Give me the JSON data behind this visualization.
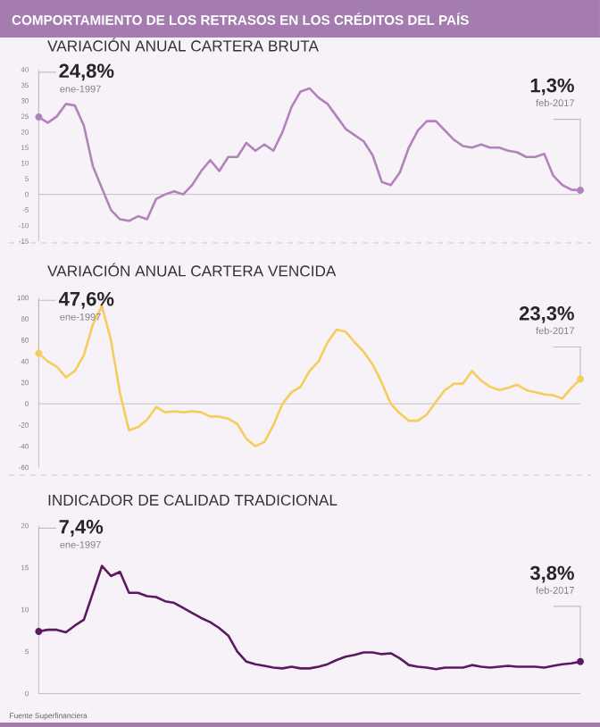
{
  "chart_data": [
    {
      "type": "line",
      "title": "COMPORTAMIENTO DE LOS RETRASOS EN LOS CRÉDITOS DEL PAÍS",
      "subtitle": "VARIACIÓN ANUAL CARTERA BRUTA",
      "color": "#b283bb",
      "tick_labels": "y",
      "categories": [
        null,
        null,
        null,
        null,
        null,
        null,
        null,
        null,
        null,
        null,
        null,
        null,
        null,
        null,
        null,
        null,
        null,
        null,
        null,
        null,
        null,
        null,
        null,
        null,
        null,
        null,
        null,
        null,
        null,
        null,
        null,
        null,
        null,
        null,
        null,
        null,
        null,
        null,
        null,
        null,
        null,
        null,
        null,
        null,
        null,
        null,
        null,
        null,
        null,
        null,
        null,
        null,
        null,
        null,
        null,
        null,
        null,
        null,
        null,
        null,
        null
      ],
      "values": [
        24.8,
        23,
        25,
        29,
        28.5,
        22,
        9,
        2,
        -5,
        -8,
        -8.5,
        -7,
        -8,
        -1.5,
        0,
        1,
        0,
        3,
        7.5,
        11,
        7.5,
        12,
        12,
        16.5,
        14,
        16,
        14,
        20,
        28,
        33,
        34,
        31,
        29,
        25,
        21,
        19,
        17,
        12.5,
        4,
        3,
        7,
        15,
        20.5,
        23.5,
        23.5,
        20.5,
        17.5,
        15.5,
        15,
        16,
        15,
        15,
        14,
        13.5,
        12,
        12,
        13,
        6,
        3,
        1.5,
        1.3
      ],
      "ylim": [
        -15,
        40
      ],
      "yticks": [
        -15,
        -10,
        -5,
        0,
        5,
        10,
        15,
        20,
        25,
        30,
        35,
        40
      ],
      "ref_lines": [
        {
          "axis": "y",
          "value": 0
        }
      ],
      "annotations": [
        "24,8%",
        "ene-1997",
        "1,3%",
        "feb-2017"
      ]
    },
    {
      "type": "line",
      "title": "VARIACIÓN ANUAL CARTERA VENCIDA",
      "color": "#f6cd5c",
      "tick_labels": "y",
      "categories": [
        null,
        null,
        null,
        null,
        null,
        null,
        null,
        null,
        null,
        null,
        null,
        null,
        null,
        null,
        null,
        null,
        null,
        null,
        null,
        null,
        null,
        null,
        null,
        null,
        null,
        null,
        null,
        null,
        null,
        null,
        null,
        null,
        null,
        null,
        null,
        null,
        null,
        null,
        null,
        null,
        null,
        null,
        null,
        null,
        null,
        null,
        null,
        null,
        null,
        null,
        null,
        null,
        null,
        null,
        null,
        null,
        null,
        null,
        null,
        null,
        null
      ],
      "values": [
        47.6,
        40,
        35,
        25,
        31,
        46,
        75,
        92,
        60,
        10,
        -25,
        -22,
        -15,
        -3,
        -8,
        -7,
        -8,
        -7,
        -8,
        -12,
        -12,
        -14,
        -19,
        -33,
        -40,
        -36,
        -20,
        0,
        11,
        16,
        31,
        40,
        58,
        70,
        68,
        58,
        49,
        37,
        20,
        0,
        -9,
        -16,
        -16,
        -10,
        2,
        13,
        19,
        19,
        31,
        22,
        16,
        13,
        15,
        18,
        13,
        11,
        9,
        8,
        5,
        15,
        23.3
      ],
      "ylim": [
        -60,
        100
      ],
      "yticks": [
        -60,
        -40,
        -20,
        0,
        20,
        40,
        60,
        80,
        100
      ],
      "ref_lines": [
        {
          "axis": "y",
          "value": 0
        }
      ],
      "annotations": [
        "47,6%",
        "ene-1997",
        "23,3%",
        "feb-2017"
      ]
    },
    {
      "type": "line",
      "title": "INDICADOR DE CALIDAD TRADICIONAL",
      "color": "#5b1a60",
      "tick_labels": "y",
      "categories": [
        null,
        null,
        null,
        null,
        null,
        null,
        null,
        null,
        null,
        null,
        null,
        null,
        null,
        null,
        null,
        null,
        null,
        null,
        null,
        null,
        null,
        null,
        null,
        null,
        null,
        null,
        null,
        null,
        null,
        null,
        null,
        null,
        null,
        null,
        null,
        null,
        null,
        null,
        null,
        null,
        null,
        null,
        null,
        null,
        null,
        null,
        null,
        null,
        null,
        null,
        null,
        null,
        null,
        null,
        null,
        null,
        null,
        null,
        null,
        null,
        null
      ],
      "values": [
        7.4,
        7.6,
        7.6,
        7.3,
        8.1,
        8.8,
        12,
        15.2,
        14,
        14.5,
        12,
        12,
        11.6,
        11.5,
        11,
        10.8,
        10.2,
        9.6,
        9,
        8.5,
        7.8,
        6.9,
        5,
        3.8,
        3.5,
        3.3,
        3.1,
        3.0,
        3.2,
        3.0,
        3.0,
        3.2,
        3.5,
        4.0,
        4.4,
        4.6,
        4.9,
        4.9,
        4.7,
        4.8,
        4.2,
        3.4,
        3.2,
        3.1,
        2.9,
        3.1,
        3.1,
        3.1,
        3.4,
        3.2,
        3.1,
        3.2,
        3.3,
        3.2,
        3.2,
        3.2,
        3.1,
        3.3,
        3.5,
        3.6,
        3.8
      ],
      "ylim": [
        0,
        20
      ],
      "yticks": [
        0,
        5,
        10,
        15,
        20
      ],
      "ref_lines": [
        {
          "axis": "y",
          "value": 0
        }
      ],
      "annotations": [
        "7,4%",
        "ene-1997",
        "3,8%",
        "feb-2017",
        "Fuente Superfinanciera"
      ]
    }
  ]
}
